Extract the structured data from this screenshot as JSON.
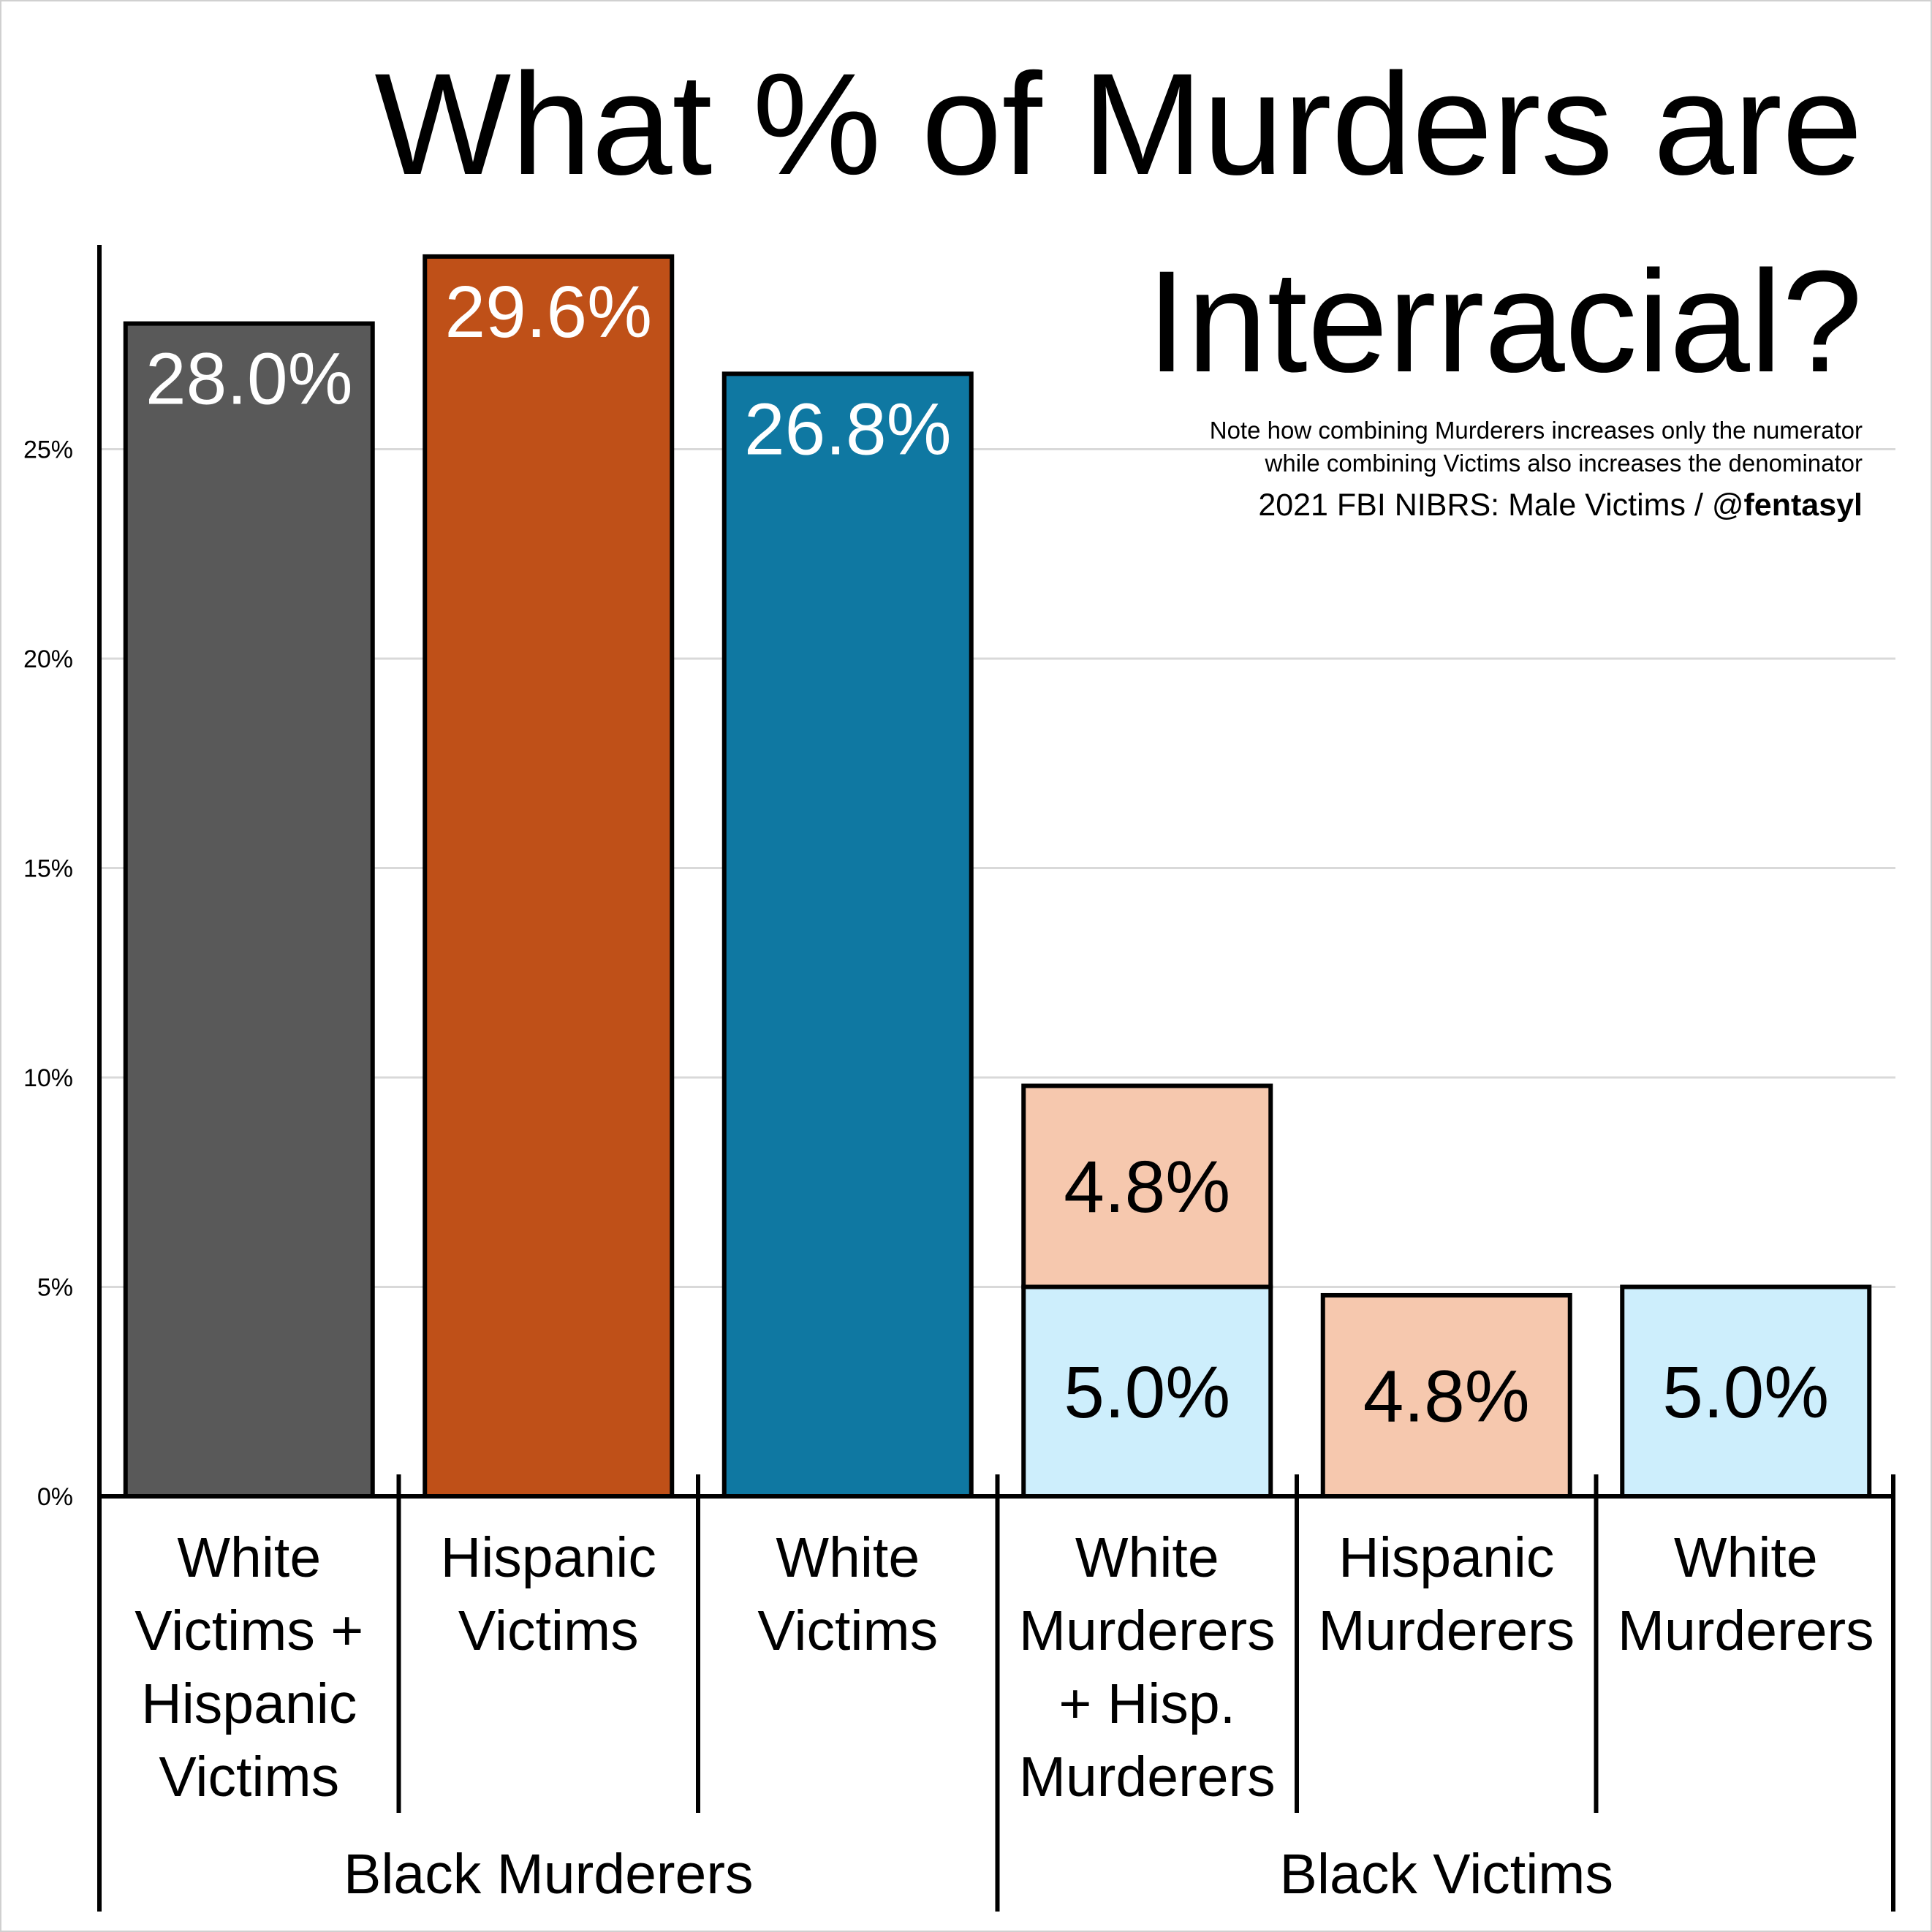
{
  "chart_data": {
    "type": "bar",
    "title_lines": [
      "What % of Murders are",
      "Interracial?"
    ],
    "notes": [
      "Note how combining Murderers increases only the numerator",
      "while combining Victims also increases the denominator"
    ],
    "source_prefix": "2021 FBI NIBRS: Male Victims / @",
    "source_handle": "fentasyl",
    "ylim": [
      0,
      30
    ],
    "yticks": [
      {
        "value": 0,
        "label": "0%"
      },
      {
        "value": 5,
        "label": "5%"
      },
      {
        "value": 10,
        "label": "10%"
      },
      {
        "value": 15,
        "label": "15%"
      },
      {
        "value": 20,
        "label": "20%"
      },
      {
        "value": 25,
        "label": "25%"
      }
    ],
    "grid": true,
    "bars": [
      {
        "category_lines": [
          "White",
          "Victims +",
          "Hispanic",
          "Victims"
        ],
        "segments": [
          {
            "value": 28.0,
            "label": "28.0%",
            "color": "#595959",
            "label_color": "#ffffff"
          }
        ]
      },
      {
        "category_lines": [
          "Hispanic",
          "Victims"
        ],
        "segments": [
          {
            "value": 29.6,
            "label": "29.6%",
            "color": "#bf5018",
            "label_color": "#ffffff"
          }
        ]
      },
      {
        "category_lines": [
          "White",
          "Victims"
        ],
        "segments": [
          {
            "value": 26.8,
            "label": "26.8%",
            "color": "#0f78a2",
            "label_color": "#ffffff"
          }
        ]
      },
      {
        "category_lines": [
          "White",
          "Murderers",
          "+ Hisp.",
          "Murderers"
        ],
        "segments": [
          {
            "value": 5.0,
            "label": "5.0%",
            "color": "#cdeefc",
            "label_color": "#000000"
          },
          {
            "value": 4.8,
            "label": "4.8%",
            "color": "#f6c8ae",
            "label_color": "#000000"
          }
        ]
      },
      {
        "category_lines": [
          "Hispanic",
          "Murderers"
        ],
        "segments": [
          {
            "value": 4.8,
            "label": "4.8%",
            "color": "#f6c8ae",
            "label_color": "#000000"
          }
        ]
      },
      {
        "category_lines": [
          "White",
          "Murderers"
        ],
        "segments": [
          {
            "value": 5.0,
            "label": "5.0%",
            "color": "#cdeefc",
            "label_color": "#000000"
          }
        ]
      }
    ],
    "groups": [
      {
        "label": "Black Murderers",
        "bars": [
          0,
          1,
          2
        ]
      },
      {
        "label": "Black Victims",
        "bars": [
          3,
          4,
          5
        ]
      }
    ]
  }
}
